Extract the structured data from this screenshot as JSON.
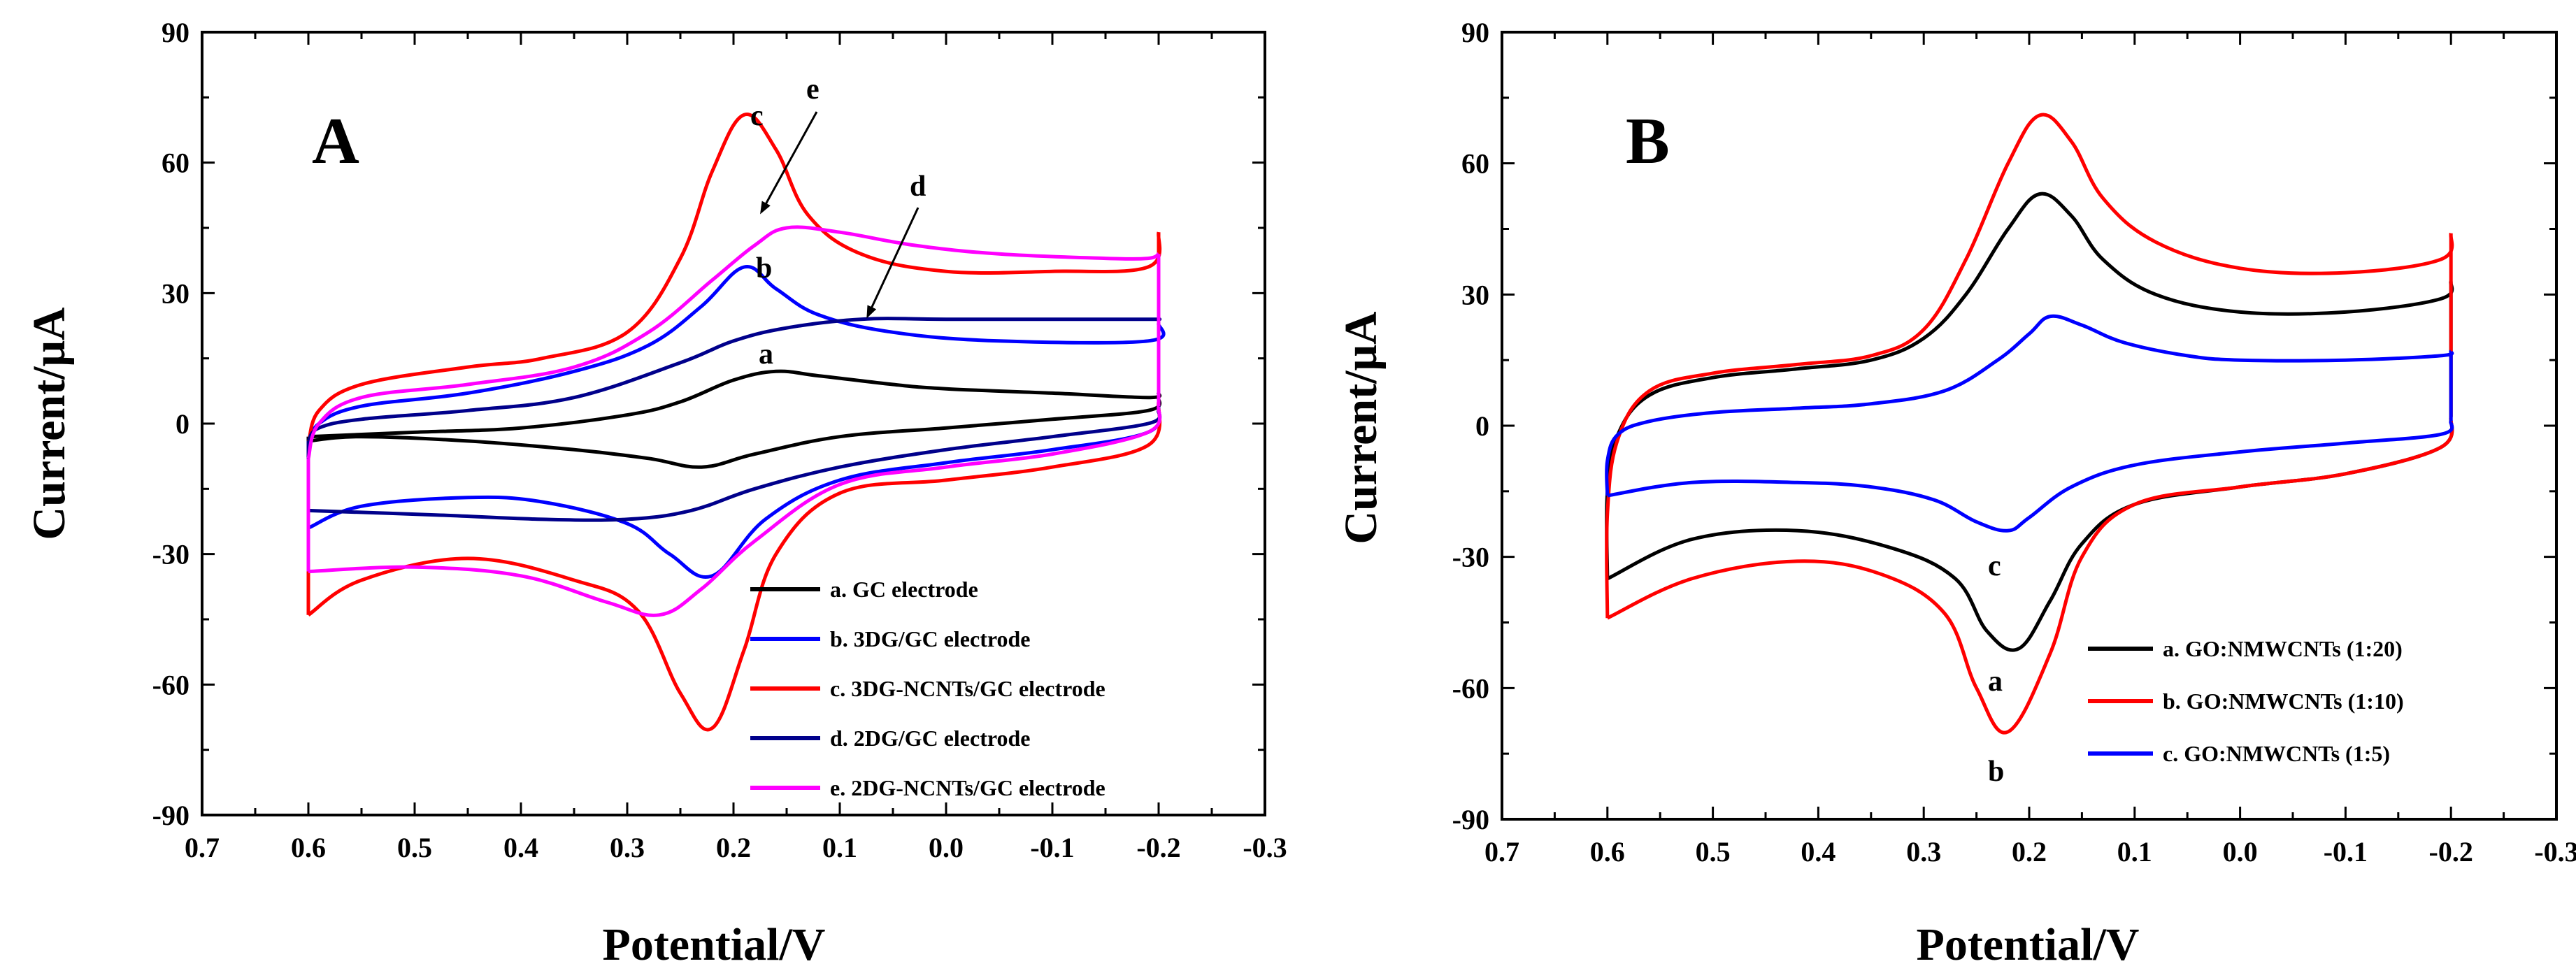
{
  "chart_data": [
    {
      "type": "line",
      "panel": "A",
      "xlabel": "Potential/V",
      "ylabel": "Current/μA",
      "xlim": [
        0.7,
        -0.3
      ],
      "ylim": [
        -90,
        90
      ],
      "xticks": [
        "0.7",
        "0.6",
        "0.5",
        "0.4",
        "0.3",
        "0.2",
        "0.1",
        "0.0",
        "-0.1",
        "-0.2",
        "-0.3"
      ],
      "yticks": [
        "-90",
        "-60",
        "-30",
        "0",
        "30",
        "60",
        "90"
      ],
      "legend_position": "lower-right",
      "series": [
        {
          "key": "a",
          "name": "a. GC electrode",
          "color": "#000000",
          "forward": [
            [
              0.6,
              -3
            ],
            [
              0.5,
              -2
            ],
            [
              0.4,
              -1
            ],
            [
              0.3,
              2
            ],
            [
              0.25,
              5
            ],
            [
              0.2,
              10
            ],
            [
              0.16,
              12
            ],
            [
              0.12,
              11
            ],
            [
              0.05,
              9
            ],
            [
              0.0,
              8
            ],
            [
              -0.1,
              7
            ],
            [
              -0.19,
              6
            ],
            [
              -0.2,
              7
            ]
          ],
          "reverse": [
            [
              -0.2,
              6
            ],
            [
              -0.19,
              3
            ],
            [
              -0.1,
              1
            ],
            [
              0.0,
              -1
            ],
            [
              0.1,
              -3
            ],
            [
              0.18,
              -7
            ],
            [
              0.23,
              -10
            ],
            [
              0.28,
              -8
            ],
            [
              0.35,
              -6
            ],
            [
              0.45,
              -4
            ],
            [
              0.55,
              -3
            ],
            [
              0.6,
              -4
            ]
          ]
        },
        {
          "key": "b",
          "name": "b. 3DG/GC electrode",
          "color": "#0000ff",
          "forward": [
            [
              0.6,
              -5
            ],
            [
              0.59,
              0
            ],
            [
              0.55,
              4
            ],
            [
              0.45,
              7
            ],
            [
              0.35,
              12
            ],
            [
              0.28,
              18
            ],
            [
              0.23,
              27
            ],
            [
              0.19,
              36
            ],
            [
              0.16,
              31
            ],
            [
              0.12,
              25
            ],
            [
              0.05,
              21
            ],
            [
              -0.05,
              19
            ],
            [
              -0.19,
              19
            ],
            [
              -0.2,
              23
            ]
          ],
          "reverse": [
            [
              -0.2,
              4
            ],
            [
              -0.19,
              -2
            ],
            [
              -0.1,
              -6
            ],
            [
              0.0,
              -9
            ],
            [
              0.1,
              -13
            ],
            [
              0.17,
              -22
            ],
            [
              0.22,
              -35
            ],
            [
              0.26,
              -30
            ],
            [
              0.3,
              -23
            ],
            [
              0.38,
              -18
            ],
            [
              0.45,
              -17
            ],
            [
              0.55,
              -19
            ],
            [
              0.6,
              -24
            ]
          ]
        },
        {
          "key": "c",
          "name": "c. 3DG-NCNTs/GC electrode",
          "color": "#ff0000",
          "forward": [
            [
              0.6,
              -5
            ],
            [
              0.59,
              3
            ],
            [
              0.55,
              9
            ],
            [
              0.45,
              13
            ],
            [
              0.38,
              15
            ],
            [
              0.3,
              21
            ],
            [
              0.25,
              38
            ],
            [
              0.22,
              58
            ],
            [
              0.19,
              71
            ],
            [
              0.16,
              63
            ],
            [
              0.13,
              48
            ],
            [
              0.08,
              39
            ],
            [
              0.0,
              35
            ],
            [
              -0.1,
              35
            ],
            [
              -0.19,
              36
            ],
            [
              -0.2,
              44
            ]
          ],
          "reverse": [
            [
              -0.2,
              5
            ],
            [
              -0.19,
              -5
            ],
            [
              -0.1,
              -10
            ],
            [
              0.0,
              -13
            ],
            [
              0.1,
              -16
            ],
            [
              0.16,
              -30
            ],
            [
              0.19,
              -52
            ],
            [
              0.22,
              -70
            ],
            [
              0.25,
              -62
            ],
            [
              0.29,
              -43
            ],
            [
              0.35,
              -36
            ],
            [
              0.45,
              -31
            ],
            [
              0.55,
              -36
            ],
            [
              0.6,
              -44
            ]
          ]
        },
        {
          "key": "d",
          "name": "d. 2DG/GC electrode",
          "color": "#00008b",
          "forward": [
            [
              0.6,
              -4
            ],
            [
              0.59,
              -1
            ],
            [
              0.55,
              1
            ],
            [
              0.45,
              3
            ],
            [
              0.35,
              6
            ],
            [
              0.25,
              14
            ],
            [
              0.2,
              19
            ],
            [
              0.15,
              22
            ],
            [
              0.08,
              24
            ],
            [
              0.0,
              24
            ],
            [
              -0.1,
              24
            ],
            [
              -0.19,
              24
            ],
            [
              -0.2,
              24
            ]
          ],
          "reverse": [
            [
              -0.2,
              3
            ],
            [
              -0.19,
              0
            ],
            [
              -0.1,
              -3
            ],
            [
              0.0,
              -6
            ],
            [
              0.1,
              -10
            ],
            [
              0.18,
              -15
            ],
            [
              0.24,
              -20
            ],
            [
              0.3,
              -22
            ],
            [
              0.38,
              -22
            ],
            [
              0.48,
              -21
            ],
            [
              0.6,
              -20
            ]
          ]
        },
        {
          "key": "e",
          "name": "e. 2DG-NCNTs/GC electrode",
          "color": "#ff00ff",
          "forward": [
            [
              0.6,
              -8
            ],
            [
              0.59,
              0
            ],
            [
              0.55,
              6
            ],
            [
              0.45,
              9
            ],
            [
              0.35,
              13
            ],
            [
              0.28,
              21
            ],
            [
              0.22,
              33
            ],
            [
              0.18,
              41
            ],
            [
              0.15,
              45
            ],
            [
              0.1,
              44
            ],
            [
              0.03,
              41
            ],
            [
              -0.05,
              39
            ],
            [
              -0.15,
              38
            ],
            [
              -0.19,
              38
            ],
            [
              -0.2,
              39
            ]
          ],
          "reverse": [
            [
              -0.2,
              4
            ],
            [
              -0.19,
              -2
            ],
            [
              -0.1,
              -7
            ],
            [
              0.0,
              -10
            ],
            [
              0.1,
              -14
            ],
            [
              0.18,
              -27
            ],
            [
              0.23,
              -38
            ],
            [
              0.27,
              -44
            ],
            [
              0.32,
              -41
            ],
            [
              0.4,
              -35
            ],
            [
              0.5,
              -33
            ],
            [
              0.6,
              -34
            ]
          ]
        }
      ],
      "annotations": [
        {
          "text": "A",
          "role": "panel-letter"
        },
        {
          "text": "c",
          "series": "c"
        },
        {
          "text": "e",
          "series": "e",
          "arrow_to": [
            0.16,
            45
          ]
        },
        {
          "text": "d",
          "series": "d",
          "arrow_to": [
            0.07,
            24
          ]
        },
        {
          "text": "b",
          "series": "b"
        },
        {
          "text": "a",
          "series": "a"
        }
      ]
    },
    {
      "type": "line",
      "panel": "B",
      "xlabel": "Potential/V",
      "ylabel": "Current/μA",
      "xlim": [
        0.7,
        -0.3
      ],
      "ylim": [
        -90,
        90
      ],
      "xticks": [
        "0.7",
        "0.6",
        "0.5",
        "0.4",
        "0.3",
        "0.2",
        "0.1",
        "0.0",
        "-0.1",
        "-0.2",
        "-0.3"
      ],
      "yticks": [
        "-90",
        "-60",
        "-30",
        "0",
        "30",
        "60",
        "90"
      ],
      "legend_position": "lower-right",
      "series": [
        {
          "key": "a",
          "name": "a. GO:NMWCNTs (1:20)",
          "color": "#000000",
          "forward": [
            [
              0.6,
              -35
            ],
            [
              0.6,
              -15
            ],
            [
              0.59,
              -2
            ],
            [
              0.56,
              7
            ],
            [
              0.5,
              11
            ],
            [
              0.42,
              13
            ],
            [
              0.35,
              15
            ],
            [
              0.3,
              20
            ],
            [
              0.26,
              30
            ],
            [
              0.22,
              45
            ],
            [
              0.19,
              53
            ],
            [
              0.16,
              48
            ],
            [
              0.13,
              38
            ],
            [
              0.08,
              30
            ],
            [
              0.0,
              26
            ],
            [
              -0.1,
              26
            ],
            [
              -0.19,
              29
            ],
            [
              -0.2,
              33
            ]
          ],
          "reverse": [
            [
              -0.2,
              2
            ],
            [
              -0.19,
              -5
            ],
            [
              -0.1,
              -11
            ],
            [
              0.0,
              -14
            ],
            [
              0.1,
              -18
            ],
            [
              0.15,
              -27
            ],
            [
              0.18,
              -40
            ],
            [
              0.21,
              -51
            ],
            [
              0.24,
              -47
            ],
            [
              0.27,
              -35
            ],
            [
              0.33,
              -28
            ],
            [
              0.42,
              -24
            ],
            [
              0.52,
              -26
            ],
            [
              0.6,
              -35
            ]
          ]
        },
        {
          "key": "b",
          "name": "b. GO:NMWCNTs (1:10)",
          "color": "#ff0000",
          "forward": [
            [
              0.6,
              -44
            ],
            [
              0.6,
              -20
            ],
            [
              0.59,
              -3
            ],
            [
              0.56,
              8
            ],
            [
              0.5,
              12
            ],
            [
              0.42,
              14
            ],
            [
              0.35,
              16
            ],
            [
              0.3,
              22
            ],
            [
              0.26,
              38
            ],
            [
              0.22,
              60
            ],
            [
              0.19,
              71
            ],
            [
              0.16,
              65
            ],
            [
              0.13,
              52
            ],
            [
              0.08,
              42
            ],
            [
              0.0,
              36
            ],
            [
              -0.1,
              35
            ],
            [
              -0.19,
              38
            ],
            [
              -0.2,
              44
            ]
          ],
          "reverse": [
            [
              -0.2,
              2
            ],
            [
              -0.19,
              -5
            ],
            [
              -0.1,
              -11
            ],
            [
              0.0,
              -14
            ],
            [
              0.1,
              -18
            ],
            [
              0.15,
              -30
            ],
            [
              0.18,
              -52
            ],
            [
              0.22,
              -70
            ],
            [
              0.25,
              -60
            ],
            [
              0.28,
              -43
            ],
            [
              0.34,
              -34
            ],
            [
              0.42,
              -31
            ],
            [
              0.52,
              -35
            ],
            [
              0.6,
              -44
            ]
          ]
        },
        {
          "key": "c",
          "name": "c. GO:NMWCNTs (1:5)",
          "color": "#0000ff",
          "forward": [
            [
              0.6,
              -16
            ],
            [
              0.6,
              -8
            ],
            [
              0.59,
              -2
            ],
            [
              0.56,
              1
            ],
            [
              0.5,
              3
            ],
            [
              0.42,
              4
            ],
            [
              0.35,
              5
            ],
            [
              0.28,
              8
            ],
            [
              0.23,
              15
            ],
            [
              0.2,
              21
            ],
            [
              0.18,
              25
            ],
            [
              0.15,
              23
            ],
            [
              0.11,
              19
            ],
            [
              0.05,
              16
            ],
            [
              0.0,
              15
            ],
            [
              -0.1,
              15
            ],
            [
              -0.19,
              16
            ],
            [
              -0.2,
              17
            ]
          ],
          "reverse": [
            [
              -0.2,
              1
            ],
            [
              -0.19,
              -2
            ],
            [
              -0.1,
              -4
            ],
            [
              0.0,
              -6
            ],
            [
              0.1,
              -9
            ],
            [
              0.16,
              -14
            ],
            [
              0.2,
              -21
            ],
            [
              0.22,
              -24
            ],
            [
              0.25,
              -22
            ],
            [
              0.29,
              -17
            ],
            [
              0.35,
              -14
            ],
            [
              0.42,
              -13
            ],
            [
              0.52,
              -13
            ],
            [
              0.6,
              -16
            ]
          ]
        }
      ],
      "annotations": [
        {
          "text": "B",
          "role": "panel-letter"
        },
        {
          "text": "c",
          "series": "c"
        },
        {
          "text": "a",
          "series": "a"
        },
        {
          "text": "b",
          "series": "b"
        }
      ]
    }
  ]
}
